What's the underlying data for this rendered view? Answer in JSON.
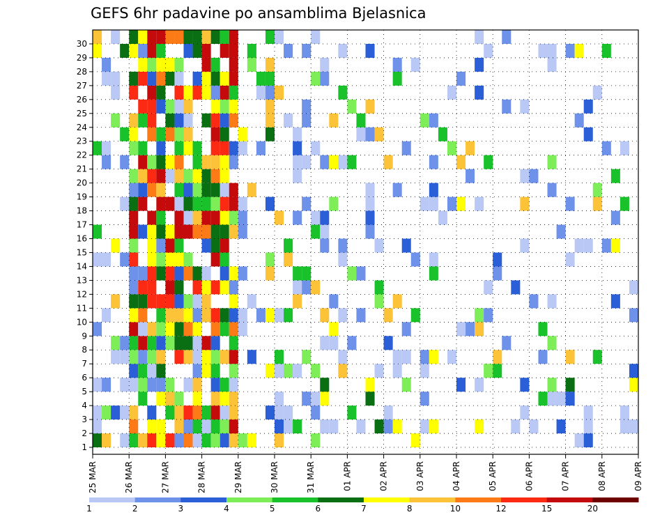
{
  "chart_data": {
    "type": "heatmap",
    "title": "GEFS 6hr padavine po ansamblima Bjelasnica",
    "xlabel": "",
    "ylabel": "",
    "x_ticks": [
      "25 MAR",
      "26 MAR",
      "27 MAR",
      "28 MAR",
      "29 MAR",
      "30 MAR",
      "31 MAR",
      "01 APR",
      "02 APR",
      "03 APR",
      "04 APR",
      "05 APR",
      "06 APR",
      "07 APR",
      "08 APR",
      "09 APR"
    ],
    "y_ticks": [
      "1",
      "2",
      "3",
      "4",
      "5",
      "6",
      "7",
      "8",
      "9",
      "10",
      "11",
      "12",
      "13",
      "14",
      "15",
      "16",
      "17",
      "18",
      "19",
      "20",
      "21",
      "22",
      "23",
      "24",
      "25",
      "26",
      "27",
      "28",
      "29",
      "30"
    ],
    "xlim": [
      "25 MAR",
      "09 APR"
    ],
    "ylim": [
      0.5,
      30.5
    ],
    "grid": "dotted",
    "colorbar": {
      "labels": [
        "1",
        "2",
        "3",
        "4",
        "5",
        "6",
        "7",
        "8",
        "10",
        "12",
        "15",
        "20"
      ],
      "colors": [
        "#b9c8f5",
        "#6e92ea",
        "#2b5fd8",
        "#7ded58",
        "#19c22a",
        "#0a6e12",
        "#ffff00",
        "#fcc238",
        "#fc7b16",
        "#fc2a12",
        "#c40a0a",
        "#6e0000"
      ]
    }
  }
}
